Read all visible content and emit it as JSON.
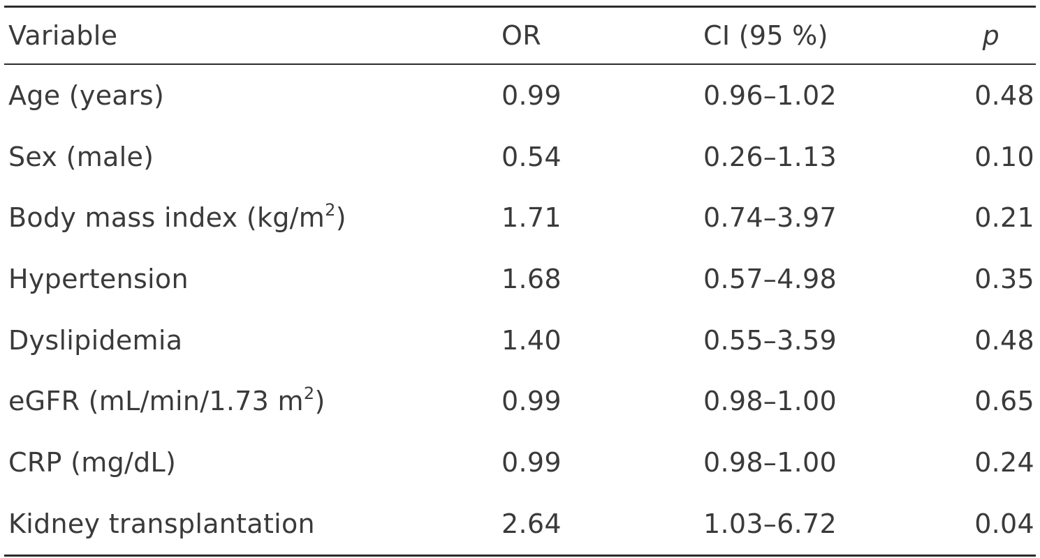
{
  "table": {
    "headers": {
      "variable": "Variable",
      "or": "OR",
      "ci": "CI (95 %)",
      "p": "p"
    },
    "rows": [
      {
        "variable": "Age (years)",
        "sup": "",
        "suffix": "",
        "or": "0.99",
        "ci": "0.96–1.02",
        "p": "0.48"
      },
      {
        "variable": "Sex (male)",
        "sup": "",
        "suffix": "",
        "or": "0.54",
        "ci": "0.26–1.13",
        "p": "0.10"
      },
      {
        "variable": "Body mass index (kg/m",
        "sup": "2",
        "suffix": ")",
        "or": "1.71",
        "ci": "0.74–3.97",
        "p": "0.21"
      },
      {
        "variable": "Hypertension",
        "sup": "",
        "suffix": "",
        "or": "1.68",
        "ci": "0.57–4.98",
        "p": "0.35"
      },
      {
        "variable": "Dyslipidemia",
        "sup": "",
        "suffix": "",
        "or": "1.40",
        "ci": "0.55–3.59",
        "p": "0.48"
      },
      {
        "variable": "eGFR (mL/min/1.73 m",
        "sup": "2",
        "suffix": ")",
        "or": "0.99",
        "ci": "0.98–1.00",
        "p": "0.65"
      },
      {
        "variable": "CRP (mg/dL)",
        "sup": "",
        "suffix": "",
        "or": "0.99",
        "ci": "0.98–1.00",
        "p": "0.24"
      },
      {
        "variable": "Kidney transplantation",
        "sup": "",
        "suffix": "",
        "or": "2.64",
        "ci": "1.03–6.72",
        "p": "0.04"
      }
    ]
  },
  "colors": {
    "text": "#3a3a3a",
    "rule": "#2b2b2b",
    "background": "#ffffff"
  }
}
